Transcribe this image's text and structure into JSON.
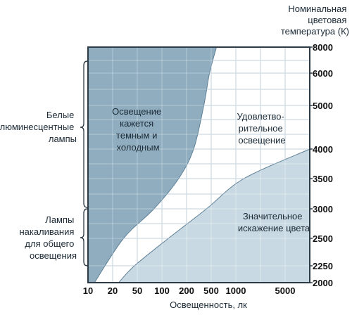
{
  "chart_data": {
    "type": "area",
    "x_scale": "log",
    "xlabel": "Освещенность, лк",
    "xlim": [
      10,
      8000
    ],
    "x_ticks": [
      "10",
      "20",
      "50",
      "100",
      "200",
      "500",
      "1000",
      "5000"
    ],
    "ylabel": [
      "Номинальная",
      "цветовая",
      "температура (К)"
    ],
    "ylim": [
      2000,
      8000
    ],
    "y_ticks": [
      "2000",
      "2250",
      "2500",
      "3000",
      "3500",
      "4000",
      "5000",
      "6000",
      "8000"
    ],
    "grid": true,
    "regions": [
      {
        "name": [
          "Освещение",
          "кажется",
          "темным и",
          "холодным"
        ],
        "color": "#8fadbf",
        "boundary": [
          {
            "x": 12,
            "y": 2000
          },
          {
            "x": 30,
            "y": 2500
          },
          {
            "x": 80,
            "y": 3000
          },
          {
            "x": 160,
            "y": 3500
          },
          {
            "x": 260,
            "y": 4000
          },
          {
            "x": 380,
            "y": 5000
          },
          {
            "x": 470,
            "y": 6000
          },
          {
            "x": 580,
            "y": 8000
          }
        ]
      },
      {
        "name": [
          "Удовлетво-",
          "рительное",
          "освещение"
        ],
        "color": "#ffffff"
      },
      {
        "name": [
          "Значительное",
          "искажение цвета"
        ],
        "color": "#c9d9e3",
        "boundary": [
          {
            "x": 25,
            "y": 2000
          },
          {
            "x": 45,
            "y": 2250
          },
          {
            "x": 120,
            "y": 2500
          },
          {
            "x": 420,
            "y": 3000
          },
          {
            "x": 1300,
            "y": 3500
          },
          {
            "x": 8000,
            "y": 4000
          }
        ]
      }
    ],
    "brackets": [
      {
        "label": [
          "Белые",
          "люминесцентные",
          "лампы"
        ],
        "y_range": [
          3000,
          6500
        ]
      },
      {
        "label": [
          "Лампы",
          "накаливания",
          "для общего",
          "освещения"
        ],
        "y_range": [
          2180,
          3000
        ]
      }
    ],
    "colors": {
      "plot_background": "#ffffff",
      "grid": "#9fb8c8",
      "frame": "#2d3b47"
    }
  }
}
